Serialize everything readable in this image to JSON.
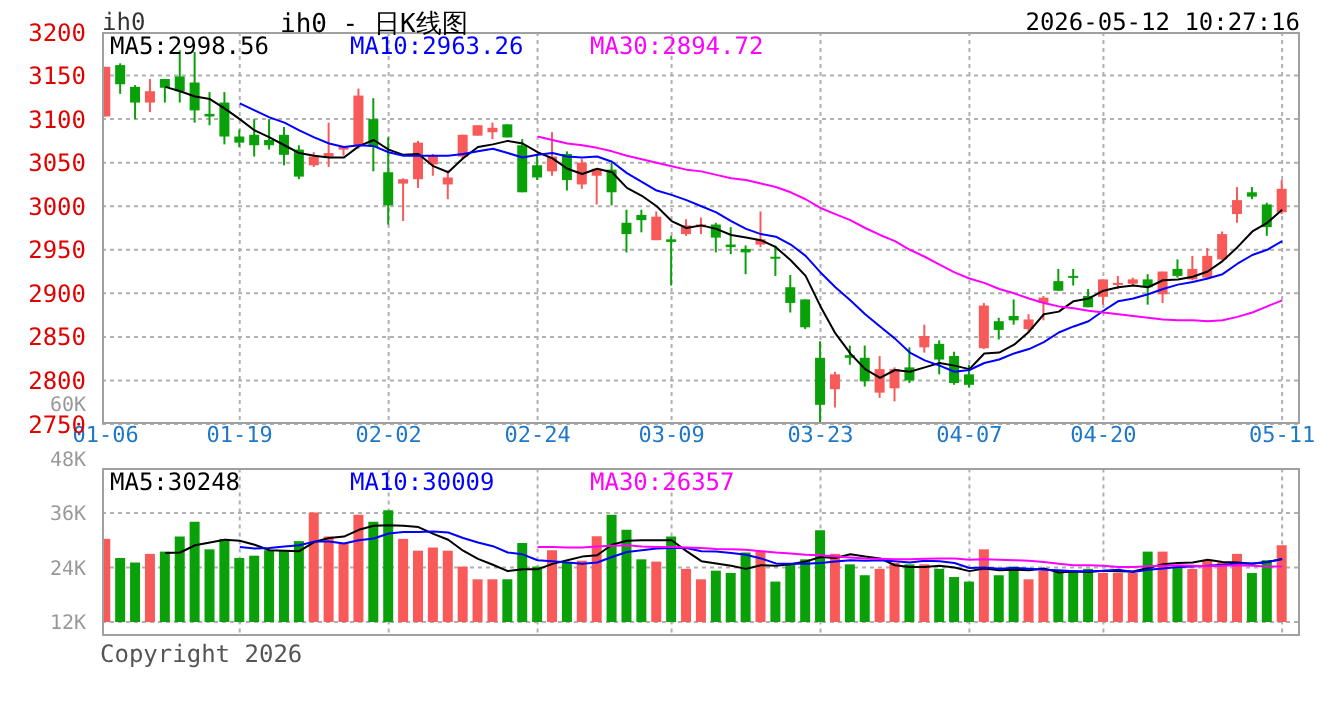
{
  "chart_data": [
    {
      "type": "candlestick",
      "title": "ih0 - 日K线图",
      "subtitle": "2026-05-12 10:27:16",
      "ylabel": "ih0",
      "categories": [
        "01-06",
        null,
        null,
        null,
        null,
        null,
        null,
        null,
        null,
        "01-19",
        null,
        null,
        null,
        null,
        null,
        null,
        null,
        null,
        null,
        "02-02",
        null,
        null,
        null,
        null,
        null,
        null,
        null,
        null,
        null,
        "02-24",
        null,
        null,
        null,
        null,
        null,
        null,
        null,
        null,
        "03-09",
        null,
        null,
        null,
        null,
        null,
        null,
        null,
        null,
        null,
        "03-23",
        null,
        null,
        null,
        null,
        null,
        null,
        null,
        null,
        null,
        "04-07",
        null,
        null,
        null,
        null,
        null,
        null,
        null,
        null,
        "04-20",
        null,
        null,
        null,
        null,
        null,
        null,
        null,
        null,
        null,
        null,
        null,
        "05-11"
      ],
      "ohlc": [
        [
          3103,
          3160,
          3103,
          3160
        ],
        [
          3162,
          3164,
          3129,
          3140
        ],
        [
          3137,
          3139,
          3100,
          3119
        ],
        [
          3119,
          3146,
          3108,
          3132
        ],
        [
          3146,
          3146,
          3119,
          3136
        ],
        [
          3149,
          3179,
          3119,
          3132
        ],
        [
          3142,
          3177,
          3096,
          3110
        ],
        [
          3106,
          3131,
          3093,
          3103
        ],
        [
          3119,
          3131,
          3071,
          3080
        ],
        [
          3080,
          3088,
          3068,
          3073
        ],
        [
          3082,
          3100,
          3057,
          3070
        ],
        [
          3076,
          3100,
          3065,
          3070
        ],
        [
          3082,
          3091,
          3047,
          3059
        ],
        [
          3065,
          3070,
          3031,
          3034
        ],
        [
          3047,
          3062,
          3045,
          3057
        ],
        [
          3057,
          3096,
          3045,
          3061
        ],
        [
          3065,
          3068,
          3058,
          3068
        ],
        [
          3070,
          3135,
          3066,
          3127
        ],
        [
          3100,
          3124,
          3040,
          3068
        ],
        [
          3039,
          3079,
          2979,
          3001
        ],
        [
          3026,
          3032,
          2983,
          3031
        ],
        [
          3031,
          3075,
          3021,
          3073
        ],
        [
          3048,
          3060,
          3035,
          3058
        ],
        [
          3025,
          3041,
          3008,
          3033
        ],
        [
          3057,
          3082,
          3054,
          3082
        ],
        [
          3081,
          3093,
          3081,
          3093
        ],
        [
          3085,
          3096,
          3077,
          3090
        ],
        [
          3094,
          3094,
          3079,
          3079
        ],
        [
          3070,
          3077,
          3016,
          3016
        ],
        [
          3047,
          3058,
          3030,
          3033
        ],
        [
          3040,
          3085,
          3035,
          3057
        ],
        [
          3060,
          3063,
          3018,
          3030
        ],
        [
          3025,
          3054,
          3020,
          3050
        ],
        [
          3035,
          3043,
          3002,
          3043
        ],
        [
          3042,
          3050,
          3001,
          3016
        ],
        [
          2981,
          2996,
          2947,
          2968
        ],
        [
          2990,
          2996,
          2970,
          2984
        ],
        [
          2961,
          2994,
          2961,
          2988
        ],
        [
          2962,
          2966,
          2909,
          2959
        ],
        [
          2968,
          2985,
          2966,
          2978
        ],
        [
          2976,
          2987,
          2968,
          2979
        ],
        [
          2979,
          2981,
          2947,
          2964
        ],
        [
          2956,
          2976,
          2945,
          2953
        ],
        [
          2951,
          2955,
          2922,
          2947
        ],
        [
          2956,
          2994,
          2953,
          2962
        ],
        [
          2942,
          2955,
          2920,
          2940
        ],
        [
          2907,
          2921,
          2878,
          2889
        ],
        [
          2893,
          2893,
          2859,
          2861
        ],
        [
          2826,
          2845,
          2750,
          2772
        ],
        [
          2790,
          2810,
          2769,
          2807
        ],
        [
          2829,
          2840,
          2818,
          2826
        ],
        [
          2826,
          2840,
          2793,
          2799
        ],
        [
          2786,
          2828,
          2780,
          2813
        ],
        [
          2791,
          2815,
          2776,
          2813
        ],
        [
          2815,
          2838,
          2797,
          2800
        ],
        [
          2838,
          2864,
          2832,
          2851
        ],
        [
          2842,
          2846,
          2807,
          2824
        ],
        [
          2828,
          2833,
          2795,
          2797
        ],
        [
          2807,
          2818,
          2792,
          2795
        ],
        [
          2837,
          2889,
          2836,
          2886
        ],
        [
          2868,
          2872,
          2847,
          2858
        ],
        [
          2874,
          2893,
          2864,
          2869
        ],
        [
          2859,
          2876,
          2855,
          2870
        ],
        [
          2889,
          2897,
          2869,
          2895
        ],
        [
          2914,
          2928,
          2903,
          2903
        ],
        [
          2920,
          2928,
          2909,
          2919
        ],
        [
          2897,
          2905,
          2884,
          2884
        ],
        [
          2896,
          2916,
          2887,
          2916
        ],
        [
          2910,
          2920,
          2905,
          2912
        ],
        [
          2911,
          2918,
          2909,
          2916
        ],
        [
          2916,
          2922,
          2887,
          2907
        ],
        [
          2899,
          2925,
          2889,
          2925
        ],
        [
          2928,
          2939,
          2918,
          2920
        ],
        [
          2916,
          2943,
          2915,
          2928
        ],
        [
          2918,
          2952,
          2916,
          2943
        ],
        [
          2939,
          2971,
          2938,
          2968
        ],
        [
          2991,
          3022,
          2981,
          3007
        ],
        [
          3016,
          3022,
          3008,
          3011
        ],
        [
          3002,
          3004,
          2966,
          2976
        ],
        [
          2993,
          3030,
          2991,
          3020
        ]
      ],
      "colors": [
        "#f85a5a",
        "#0aa00a",
        "#0aa00a",
        "#f85a5a",
        "#0aa00a",
        "#0aa00a",
        "#0aa00a",
        "#0aa00a",
        "#0aa00a",
        "#0aa00a",
        "#0aa00a",
        "#0aa00a",
        "#0aa00a",
        "#0aa00a",
        "#f85a5a",
        "#f85a5a",
        "#f85a5a",
        "#f85a5a",
        "#0aa00a",
        "#0aa00a",
        "#f85a5a",
        "#f85a5a",
        "#f85a5a",
        "#f85a5a",
        "#f85a5a",
        "#f85a5a",
        "#f85a5a",
        "#0aa00a",
        "#0aa00a",
        "#0aa00a",
        "#f85a5a",
        "#0aa00a",
        "#f85a5a",
        "#f85a5a",
        "#0aa00a",
        "#0aa00a",
        "#0aa00a",
        "#f85a5a",
        "#0aa00a",
        "#f85a5a",
        "#f85a5a",
        "#0aa00a",
        "#0aa00a",
        "#0aa00a",
        "#f85a5a",
        "#0aa00a",
        "#0aa00a",
        "#0aa00a",
        "#0aa00a",
        "#f85a5a",
        "#0aa00a",
        "#0aa00a",
        "#f85a5a",
        "#f85a5a",
        "#0aa00a",
        "#f85a5a",
        "#0aa00a",
        "#0aa00a",
        "#0aa00a",
        "#f85a5a",
        "#0aa00a",
        "#0aa00a",
        "#f85a5a",
        "#f85a5a",
        "#0aa00a",
        "#0aa00a",
        "#0aa00a",
        "#f85a5a",
        "#f85a5a",
        "#f85a5a",
        "#0aa00a",
        "#f85a5a",
        "#0aa00a",
        "#f85a5a",
        "#f85a5a",
        "#f85a5a",
        "#f85a5a",
        "#0aa00a",
        "#0aa00a",
        "#f85a5a"
      ],
      "series": [
        {
          "type": "line",
          "name": "MA5:2998.56",
          "color": "#000000",
          "values": [
            null,
            null,
            null,
            null,
            3137,
            3132,
            3126,
            3123,
            3112,
            3100,
            3087,
            3079,
            3070,
            3061,
            3058,
            3056,
            3056,
            3069,
            3076,
            3065,
            3059,
            3060,
            3046,
            3039,
            3055,
            3068,
            3071,
            3075,
            3072,
            3062,
            3055,
            3043,
            3037,
            3043,
            3039,
            3021,
            3012,
            3000,
            2983,
            2975,
            2978,
            2974,
            2967,
            2964,
            2961,
            2953,
            2938,
            2920,
            2885,
            2854,
            2831,
            2813,
            2803,
            2812,
            2810,
            2815,
            2820,
            2817,
            2813,
            2831,
            2832,
            2841,
            2856,
            2876,
            2879,
            2891,
            2894,
            2903,
            2907,
            2909,
            2907,
            2915,
            2916,
            2919,
            2925,
            2937,
            2953,
            2971,
            2981,
            2996
          ]
        },
        {
          "type": "line",
          "name": "MA10:2963.26",
          "color": "#0000ff",
          "values": [
            null,
            null,
            null,
            null,
            null,
            null,
            null,
            null,
            null,
            3118,
            3110,
            3102,
            3096,
            3087,
            3079,
            3072,
            3068,
            3070,
            3069,
            3062,
            3058,
            3058,
            3058,
            3058,
            3060,
            3063,
            3066,
            3061,
            3056,
            3059,
            3061,
            3057,
            3056,
            3057,
            3051,
            3038,
            3028,
            3018,
            3013,
            3007,
            3000,
            2993,
            2983,
            2974,
            2968,
            2965,
            2956,
            2943,
            2924,
            2907,
            2892,
            2876,
            2862,
            2848,
            2832,
            2823,
            2817,
            2810,
            2812,
            2820,
            2824,
            2831,
            2836,
            2844,
            2855,
            2862,
            2868,
            2880,
            2891,
            2894,
            2899,
            2905,
            2910,
            2913,
            2917,
            2922,
            2934,
            2944,
            2950,
            2960
          ]
        },
        {
          "type": "line",
          "name": "MA30:2894.72",
          "color": "#ff00ff",
          "values": [
            null,
            null,
            null,
            null,
            null,
            null,
            null,
            null,
            null,
            null,
            null,
            null,
            null,
            null,
            null,
            null,
            null,
            null,
            null,
            null,
            null,
            null,
            null,
            null,
            null,
            null,
            null,
            null,
            null,
            3080,
            3076,
            3072,
            3070,
            3067,
            3063,
            3058,
            3054,
            3050,
            3046,
            3042,
            3040,
            3036,
            3032,
            3030,
            3026,
            3022,
            3016,
            3008,
            2998,
            2991,
            2984,
            2975,
            2967,
            2960,
            2950,
            2942,
            2933,
            2924,
            2917,
            2912,
            2905,
            2900,
            2894,
            2889,
            2885,
            2883,
            2880,
            2878,
            2876,
            2874,
            2872,
            2870,
            2869,
            2869,
            2868,
            2869,
            2873,
            2878,
            2885,
            2892
          ]
        }
      ],
      "legend": "top left",
      "ylim": [
        2750,
        3200
      ],
      "yticks": [
        2750,
        2800,
        2850,
        2900,
        2950,
        3000,
        3050,
        3100,
        3150,
        3200
      ],
      "grid": true
    },
    {
      "type": "bar",
      "tick_labels": "y",
      "annotations": [
        "Copyright 2026"
      ],
      "categories": [
        null,
        null,
        null,
        null,
        null,
        null,
        null,
        null,
        null,
        null,
        null,
        null,
        null,
        null,
        null,
        null,
        null,
        null,
        null,
        null,
        null,
        null,
        null,
        null,
        null,
        null,
        null,
        null,
        null,
        null,
        null,
        null,
        null,
        null,
        null,
        null,
        null,
        null,
        null,
        null,
        null,
        null,
        null,
        null,
        null,
        null,
        null,
        null,
        null,
        null,
        null,
        null,
        null,
        null,
        null,
        null,
        null,
        null,
        null,
        null,
        null,
        null,
        null,
        null,
        null,
        null,
        null,
        null,
        null,
        null,
        null,
        null,
        null,
        null,
        null,
        null,
        null,
        null,
        null,
        null
      ],
      "series": [
        {
          "type": "bar",
          "values": [
            30300,
            26100,
            25100,
            27000,
            27500,
            30800,
            34100,
            28000,
            30300,
            26100,
            26600,
            27800,
            27800,
            29800,
            36100,
            30800,
            29400,
            35600,
            34100,
            36600,
            30300,
            27700,
            28400,
            27700,
            24200,
            21400,
            21400,
            21400,
            29400,
            24200,
            27800,
            25000,
            25500,
            30900,
            35600,
            32300,
            25800,
            25300,
            30800,
            23700,
            21400,
            23300,
            22800,
            27300,
            27700,
            20900,
            24700,
            25800,
            32200,
            27000,
            24700,
            22300,
            23700,
            25000,
            24700,
            24700,
            23700,
            21900,
            20900,
            28000,
            22300,
            24200,
            21400,
            23300,
            23300,
            23300,
            23700,
            22800,
            22800,
            22800,
            27500,
            27500,
            24200,
            23700,
            25600,
            25100,
            27000,
            22800,
            25600,
            28900
          ],
          "colors": [
            "#f85a5a",
            "#0aa00a",
            "#0aa00a",
            "#f85a5a",
            "#0aa00a",
            "#0aa00a",
            "#0aa00a",
            "#0aa00a",
            "#0aa00a",
            "#0aa00a",
            "#0aa00a",
            "#0aa00a",
            "#0aa00a",
            "#0aa00a",
            "#f85a5a",
            "#f85a5a",
            "#f85a5a",
            "#f85a5a",
            "#0aa00a",
            "#0aa00a",
            "#f85a5a",
            "#f85a5a",
            "#f85a5a",
            "#f85a5a",
            "#f85a5a",
            "#f85a5a",
            "#f85a5a",
            "#0aa00a",
            "#0aa00a",
            "#0aa00a",
            "#f85a5a",
            "#0aa00a",
            "#f85a5a",
            "#f85a5a",
            "#0aa00a",
            "#0aa00a",
            "#0aa00a",
            "#f85a5a",
            "#0aa00a",
            "#f85a5a",
            "#f85a5a",
            "#0aa00a",
            "#0aa00a",
            "#0aa00a",
            "#f85a5a",
            "#0aa00a",
            "#0aa00a",
            "#0aa00a",
            "#0aa00a",
            "#f85a5a",
            "#0aa00a",
            "#0aa00a",
            "#f85a5a",
            "#f85a5a",
            "#0aa00a",
            "#f85a5a",
            "#0aa00a",
            "#0aa00a",
            "#0aa00a",
            "#f85a5a",
            "#0aa00a",
            "#0aa00a",
            "#f85a5a",
            "#f85a5a",
            "#0aa00a",
            "#0aa00a",
            "#0aa00a",
            "#f85a5a",
            "#f85a5a",
            "#f85a5a",
            "#0aa00a",
            "#f85a5a",
            "#0aa00a",
            "#f85a5a",
            "#f85a5a",
            "#f85a5a",
            "#f85a5a",
            "#0aa00a",
            "#0aa00a",
            "#f85a5a"
          ]
        },
        {
          "type": "line",
          "name": "MA5:30248",
          "color": "#000000",
          "values": [
            null,
            null,
            null,
            null,
            27200,
            27300,
            28900,
            29500,
            30100,
            29900,
            29000,
            27800,
            27700,
            27600,
            29600,
            30500,
            30800,
            32300,
            33200,
            33300,
            33200,
            32900,
            31400,
            30100,
            27700,
            25900,
            24600,
            23200,
            23600,
            23600,
            24800,
            25600,
            26400,
            26700,
            29000,
            29900,
            30000,
            30000,
            30000,
            27600,
            25400,
            24900,
            24400,
            23700,
            24500,
            24400,
            24700,
            25300,
            26300,
            26100,
            26900,
            26400,
            26000,
            24500,
            24100,
            24100,
            24400,
            24000,
            23200,
            23800,
            23400,
            23500,
            23400,
            23800,
            22900,
            23100,
            23000,
            23300,
            23200,
            23100,
            23900,
            24700,
            25000,
            25100,
            25700,
            25200,
            25100,
            24800,
            25200,
            25900
          ]
        },
        {
          "type": "line",
          "name": "MA10:30009",
          "color": "#0000ff",
          "values": [
            null,
            null,
            null,
            null,
            null,
            null,
            null,
            null,
            null,
            28500,
            28200,
            28300,
            28600,
            28900,
            29700,
            29700,
            29300,
            30000,
            30400,
            31500,
            31800,
            31800,
            31900,
            31700,
            30500,
            29500,
            28700,
            27300,
            26900,
            25600,
            25400,
            25100,
            24800,
            25100,
            26300,
            27400,
            27800,
            28200,
            28300,
            28300,
            27600,
            27500,
            27200,
            26800,
            26000,
            24900,
            24800,
            24800,
            25000,
            25300,
            25600,
            25500,
            25600,
            25400,
            25100,
            25500,
            25400,
            25000,
            23900,
            24000,
            23700,
            23900,
            23700,
            23500,
            23400,
            23200,
            23200,
            23300,
            23500,
            23000,
            23500,
            23800,
            24100,
            24200,
            24400,
            24600,
            24900,
            24900,
            25200,
            25800
          ]
        },
        {
          "type": "line",
          "name": "MA30:26357",
          "color": "#ff00ff",
          "values": [
            null,
            null,
            null,
            null,
            null,
            null,
            null,
            null,
            null,
            null,
            null,
            null,
            null,
            null,
            null,
            null,
            null,
            null,
            null,
            null,
            null,
            null,
            null,
            null,
            null,
            null,
            null,
            null,
            null,
            28500,
            28500,
            28400,
            28400,
            28600,
            28800,
            28900,
            28600,
            28500,
            28500,
            28400,
            28300,
            28100,
            28000,
            27900,
            27600,
            27300,
            27100,
            26800,
            26700,
            26400,
            26200,
            26000,
            25900,
            25800,
            25800,
            25900,
            26000,
            26000,
            25700,
            25800,
            25700,
            25600,
            25500,
            25200,
            24800,
            24500,
            24500,
            24400,
            24100,
            24100,
            24300,
            24400,
            24500,
            24400,
            24300,
            24400,
            24500,
            24400,
            24200,
            24200
          ]
        }
      ],
      "legend": "top left",
      "ylim": [
        12000,
        60000
      ],
      "yticks": [
        {
          "value": 12000,
          "label": "12K"
        },
        {
          "value": 24000,
          "label": "24K"
        },
        {
          "value": 36000,
          "label": "36K"
        },
        {
          "value": 48000,
          "label": "48K"
        },
        {
          "value": 60000,
          "label": "60K"
        }
      ],
      "grid": true
    }
  ]
}
